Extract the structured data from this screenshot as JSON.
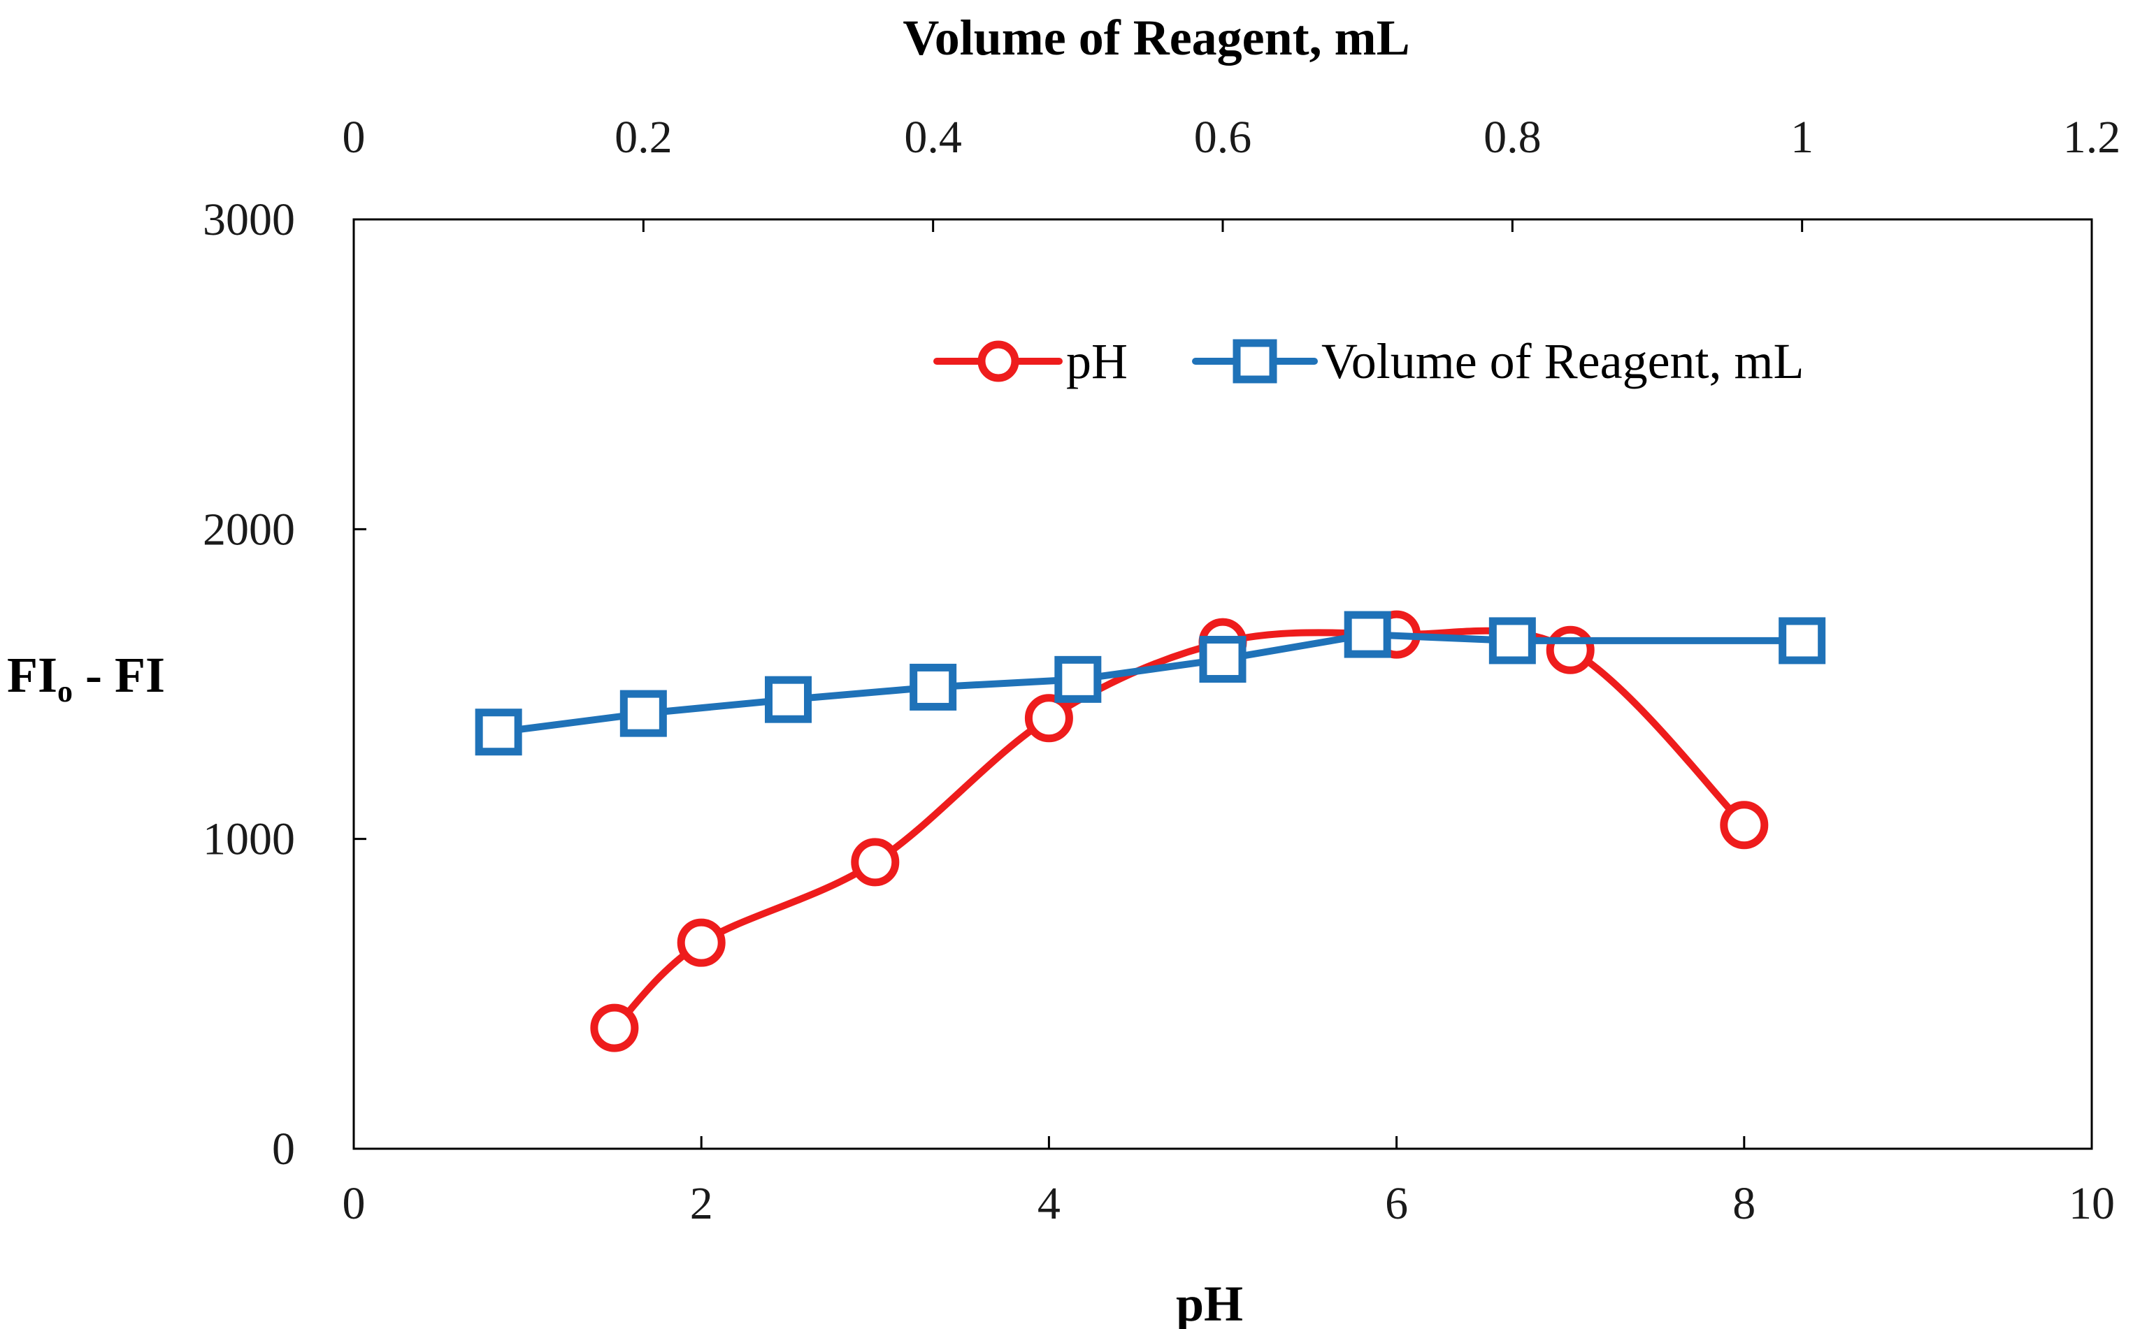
{
  "colors": {
    "ph_series": "#ee1c1c",
    "volume_series": "#1f72b8",
    "axis": "#000000",
    "background": "#ffffff"
  },
  "chart_data": {
    "type": "line",
    "title": "",
    "ylabel": "FI",
    "ylabel_sub": "o",
    "ylabel_tail": " - FI",
    "ylim": [
      0,
      3000
    ],
    "y_ticks": [
      "0",
      "1000",
      "2000",
      "3000"
    ],
    "x_bottom": {
      "label": "pH",
      "lim": [
        0,
        10
      ],
      "ticks": [
        "0",
        "2",
        "4",
        "6",
        "8",
        "10"
      ]
    },
    "x_top": {
      "label": "Volume of Reagent, mL",
      "lim": [
        0,
        1.2
      ],
      "ticks": [
        "0",
        "0.2",
        "0.4",
        "0.6",
        "0.8",
        "1",
        "1.2"
      ]
    },
    "grid": false,
    "legend_position": "top-right",
    "series": [
      {
        "name": "pH",
        "axis": "bottom",
        "marker": "circle",
        "smooth": true,
        "x": [
          1.5,
          2,
          3,
          4,
          5,
          6,
          7,
          8
        ],
        "y": [
          390,
          665,
          925,
          1390,
          1635,
          1660,
          1610,
          1045
        ]
      },
      {
        "name": "Volume of Reagent, mL",
        "axis": "top",
        "marker": "square",
        "smooth": false,
        "x": [
          0.1,
          0.2,
          0.3,
          0.4,
          0.5,
          0.6,
          0.7,
          0.8,
          1.0
        ],
        "y": [
          1345,
          1405,
          1450,
          1490,
          1515,
          1580,
          1660,
          1640,
          1640
        ]
      }
    ]
  }
}
